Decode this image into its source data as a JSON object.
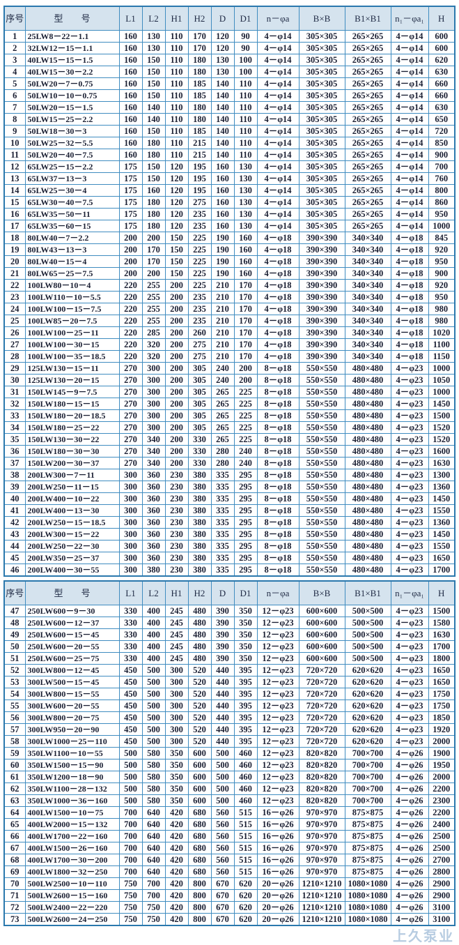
{
  "colors": {
    "border": "#2a78ad",
    "header_bg": "#d5e3ee",
    "text": "#1a1f33"
  },
  "header": [
    "序号",
    "型　　号",
    "L1",
    "L2",
    "H1",
    "H2",
    "D",
    "D1",
    "n－φa",
    "B×B",
    "B1×B1",
    "n₁－φa₁",
    "H"
  ],
  "sections": [
    {
      "rows": [
        [
          "1",
          "25LW8－22－1.1",
          "160",
          "130",
          "110",
          "170",
          "120",
          "90",
          "4－φ14",
          "305×305",
          "265×265",
          "4－φ14",
          "600"
        ],
        [
          "2",
          "32LW12－15－1.1",
          "160",
          "130",
          "110",
          "170",
          "120",
          "90",
          "4－φ14",
          "305×305",
          "265×265",
          "4－φ14",
          "600"
        ],
        [
          "3",
          "40LW15－15－1.5",
          "160",
          "150",
          "110",
          "180",
          "130",
          "100",
          "4－φ14",
          "305×305",
          "265×265",
          "4－φ14",
          "620"
        ],
        [
          "4",
          "40LW15－30－2.2",
          "160",
          "150",
          "110",
          "180",
          "130",
          "100",
          "4－φ14",
          "305×305",
          "265×265",
          "4－φ14",
          "630"
        ],
        [
          "5",
          "50LW20－7－0.75",
          "160",
          "150",
          "110",
          "185",
          "140",
          "110",
          "4－φ14",
          "305×305",
          "265×265",
          "4－φ14",
          "660"
        ],
        [
          "6",
          "50LW10－10－0.75",
          "160",
          "150",
          "110",
          "185",
          "140",
          "110",
          "4－φ14",
          "305×305",
          "265×265",
          "4－φ14",
          "660"
        ],
        [
          "7",
          "50LW20－15－1.5",
          "160",
          "140",
          "110",
          "180",
          "140",
          "110",
          "4－φ14",
          "305×305",
          "265×265",
          "4－φ14",
          "630"
        ],
        [
          "8",
          "50LW15－25－2.2",
          "160",
          "140",
          "110",
          "180",
          "140",
          "110",
          "4－φ14",
          "305×305",
          "265×265",
          "4－φ14",
          "650"
        ],
        [
          "9",
          "50LW18－30－3",
          "160",
          "150",
          "110",
          "185",
          "140",
          "110",
          "4－φ14",
          "305×305",
          "265×265",
          "4－φ14",
          "720"
        ],
        [
          "10",
          "50LW25－32－5.5",
          "160",
          "180",
          "110",
          "215",
          "140",
          "110",
          "4－φ14",
          "305×305",
          "265×265",
          "4－φ14",
          "850"
        ],
        [
          "11",
          "50LW20－40－7.5",
          "160",
          "180",
          "110",
          "215",
          "140",
          "110",
          "4－φ14",
          "305×305",
          "265×265",
          "4－φ14",
          "900"
        ],
        [
          "12",
          "65LW25－15－2.2",
          "175",
          "150",
          "120",
          "195",
          "160",
          "130",
          "4－φ14",
          "305×305",
          "265×265",
          "4－φ14",
          "700"
        ],
        [
          "13",
          "65LW37－13－3",
          "175",
          "150",
          "120",
          "195",
          "160",
          "130",
          "4－φ14",
          "305×305",
          "265×265",
          "4－φ14",
          "760"
        ],
        [
          "14",
          "65LW25－30－4",
          "175",
          "160",
          "120",
          "195",
          "160",
          "130",
          "4－φ14",
          "305×305",
          "265×265",
          "4－φ14",
          "800"
        ],
        [
          "15",
          "65LW30－40－7.5",
          "175",
          "180",
          "120",
          "275",
          "160",
          "130",
          "4－φ14",
          "305×305",
          "265×265",
          "4－φ14",
          "860"
        ],
        [
          "16",
          "65LW35－50－11",
          "175",
          "180",
          "120",
          "235",
          "160",
          "130",
          "4－φ14",
          "305×305",
          "265×265",
          "4－φ14",
          "950"
        ],
        [
          "17",
          "65LW35－60－15",
          "175",
          "180",
          "120",
          "235",
          "160",
          "130",
          "4－φ14",
          "305×305",
          "265×265",
          "4－φ14",
          "1000"
        ],
        [
          "18",
          "80LW40－7－2.2",
          "200",
          "200",
          "150",
          "225",
          "190",
          "160",
          "4－φ18",
          "390×390",
          "340×340",
          "4－φ18",
          "845"
        ],
        [
          "19",
          "80LW43－13－3",
          "200",
          "170",
          "150",
          "225",
          "190",
          "160",
          "4－φ18",
          "390×390",
          "340×340",
          "4－φ18",
          "920"
        ],
        [
          "20",
          "80LW40－15－4",
          "200",
          "170",
          "150",
          "225",
          "190",
          "160",
          "4－φ18",
          "390×390",
          "340×340",
          "4－φ18",
          "950"
        ],
        [
          "21",
          "80LW65－25－7.5",
          "200",
          "200",
          "150",
          "225",
          "190",
          "160",
          "4－φ18",
          "390×390",
          "340×340",
          "4－φ18",
          "900"
        ],
        [
          "22",
          "100LW80－10－4",
          "220",
          "255",
          "200",
          "225",
          "210",
          "170",
          "4－φ18",
          "390×390",
          "340×340",
          "4－φ18",
          "920"
        ],
        [
          "23",
          "100LW110－10－5.5",
          "220",
          "255",
          "200",
          "235",
          "210",
          "170",
          "4－φ18",
          "390×390",
          "340×340",
          "4－φ18",
          "950"
        ],
        [
          "24",
          "100LW100－15－7.5",
          "220",
          "255",
          "200",
          "235",
          "210",
          "170",
          "4－φ18",
          "390×390",
          "340×340",
          "4－φ18",
          "980"
        ],
        [
          "25",
          "100LW85－20－7.5",
          "220",
          "255",
          "200",
          "235",
          "210",
          "170",
          "4－φ18",
          "390×390",
          "340×340",
          "4－φ18",
          "980"
        ],
        [
          "26",
          "100LW100－25－11",
          "220",
          "285",
          "200",
          "260",
          "210",
          "170",
          "4－φ18",
          "390×390",
          "340×340",
          "4－φ18",
          "1020"
        ],
        [
          "27",
          "100LW100－30－15",
          "220",
          "320",
          "200",
          "275",
          "210",
          "170",
          "4－φ18",
          "390×390",
          "340×340",
          "4－φ18",
          "1100"
        ],
        [
          "28",
          "100LW100－35－18.5",
          "220",
          "320",
          "200",
          "275",
          "210",
          "170",
          "4－φ18",
          "390×390",
          "340×340",
          "4－φ18",
          "1150"
        ],
        [
          "29",
          "125LW130－15－11",
          "270",
          "300",
          "200",
          "305",
          "240",
          "200",
          "8－φ18",
          "550×550",
          "480×480",
          "4－φ23",
          "1000"
        ],
        [
          "30",
          "125LW130－20－15",
          "270",
          "300",
          "200",
          "305",
          "240",
          "200",
          "8－φ18",
          "550×550",
          "480×480",
          "4－φ23",
          "1050"
        ],
        [
          "31",
          "150LW145－9－7.5",
          "270",
          "300",
          "200",
          "305",
          "265",
          "225",
          "8－φ18",
          "550×550",
          "480×480",
          "4－φ23",
          "1000"
        ],
        [
          "32",
          "150LW180－15－15",
          "270",
          "300",
          "200",
          "305",
          "265",
          "225",
          "8－φ18",
          "550×550",
          "480×480",
          "4－φ23",
          "1450"
        ],
        [
          "33",
          "150LW180－20－18.5",
          "270",
          "300",
          "200",
          "305",
          "265",
          "225",
          "8－φ18",
          "550×550",
          "480×480",
          "4－φ23",
          "1500"
        ],
        [
          "34",
          "150LW180－25－22",
          "270",
          "300",
          "200",
          "305",
          "265",
          "225",
          "8－φ18",
          "550×550",
          "480×480",
          "4－φ23",
          "1520"
        ],
        [
          "35",
          "150LW130－30－22",
          "270",
          "340",
          "200",
          "330",
          "265",
          "225",
          "8－φ18",
          "550×550",
          "480×480",
          "4－φ23",
          "1520"
        ],
        [
          "36",
          "150LW180－30－30",
          "270",
          "340",
          "200",
          "330",
          "280",
          "240",
          "8－φ18",
          "550×550",
          "480×480",
          "4－φ23",
          "1600"
        ],
        [
          "37",
          "150LW200－30－37",
          "270",
          "340",
          "200",
          "330",
          "280",
          "240",
          "8－φ18",
          "550×550",
          "480×480",
          "4－φ23",
          "1630"
        ],
        [
          "38",
          "200LW300－7－11",
          "300",
          "360",
          "230",
          "380",
          "335",
          "295",
          "8－φ18",
          "550×550",
          "480×480",
          "4－φ23",
          "1300"
        ],
        [
          "39",
          "200LW250－11－15",
          "300",
          "360",
          "230",
          "380",
          "335",
          "295",
          "8－φ18",
          "550×550",
          "480×480",
          "4－φ23",
          "1360"
        ],
        [
          "40",
          "200LW400－10－22",
          "300",
          "360",
          "230",
          "380",
          "335",
          "295",
          "8－φ18",
          "550×550",
          "480×480",
          "4－φ23",
          "1450"
        ],
        [
          "41",
          "200LW400－13－30",
          "300",
          "360",
          "230",
          "380",
          "335",
          "295",
          "8－φ18",
          "550×550",
          "480×480",
          "4－φ23",
          "1550"
        ],
        [
          "42",
          "200LW250－15－18.5",
          "300",
          "360",
          "230",
          "380",
          "335",
          "295",
          "8－φ18",
          "550×550",
          "480×480",
          "4－φ23",
          "1360"
        ],
        [
          "43",
          "200LW300－15－22",
          "300",
          "360",
          "230",
          "380",
          "335",
          "295",
          "8－φ18",
          "550×550",
          "480×480",
          "4－φ23",
          "1450"
        ],
        [
          "44",
          "200LW250－22－30",
          "300",
          "360",
          "230",
          "380",
          "335",
          "295",
          "8－φ18",
          "550×550",
          "480×480",
          "4－φ23",
          "1550"
        ],
        [
          "45",
          "200LW350－25－37",
          "300",
          "360",
          "230",
          "380",
          "335",
          "295",
          "8－φ18",
          "550×550",
          "480×480",
          "4－φ23",
          "1650"
        ],
        [
          "46",
          "200LW400－30－55",
          "300",
          "380",
          "230",
          "380",
          "335",
          "295",
          "8－φ18",
          "550×550",
          "480×480",
          "4－φ23",
          "1700"
        ]
      ]
    },
    {
      "rows": [
        [
          "47",
          "250LW600－9－30",
          "330",
          "400",
          "245",
          "480",
          "390",
          "350",
          "12－φ23",
          "600×600",
          "500×500",
          "4－φ23",
          "1500"
        ],
        [
          "48",
          "250LW600－12－37",
          "330",
          "400",
          "245",
          "480",
          "390",
          "350",
          "12－φ23",
          "600×600",
          "500×500",
          "4－φ23",
          "1580"
        ],
        [
          "49",
          "250LW600－15－45",
          "330",
          "400",
          "245",
          "480",
          "390",
          "350",
          "12－φ23",
          "600×600",
          "500×500",
          "4－φ23",
          "1630"
        ],
        [
          "50",
          "250LW600－20－55",
          "330",
          "400",
          "245",
          "480",
          "390",
          "350",
          "12－φ23",
          "600×600",
          "500×500",
          "4－φ23",
          "1700"
        ],
        [
          "51",
          "250LW600－25－75",
          "330",
          "400",
          "245",
          "480",
          "390",
          "350",
          "12－φ23",
          "600×600",
          "500×500",
          "4－φ23",
          "1800"
        ],
        [
          "52",
          "300LW800－12－45",
          "450",
          "500",
          "300",
          "520",
          "440",
          "395",
          "12－φ23",
          "720×720",
          "620×620",
          "4－φ23",
          "1650"
        ],
        [
          "53",
          "300LW500－15－45",
          "450",
          "500",
          "300",
          "520",
          "440",
          "395",
          "12－φ23",
          "720×720",
          "620×620",
          "4－φ23",
          "1650"
        ],
        [
          "54",
          "300LW800－15－55",
          "450",
          "500",
          "300",
          "520",
          "440",
          "395",
          "12－φ23",
          "720×720",
          "620×620",
          "4－φ23",
          "1750"
        ],
        [
          "55",
          "300LW600－20－55",
          "450",
          "500",
          "300",
          "520",
          "440",
          "395",
          "12－φ23",
          "720×720",
          "620×620",
          "4－φ23",
          "1750"
        ],
        [
          "56",
          "300LW800－20－75",
          "450",
          "500",
          "300",
          "520",
          "440",
          "395",
          "12－φ23",
          "720×720",
          "620×620",
          "4－φ23",
          "1850"
        ],
        [
          "57",
          "300LW950－20－90",
          "450",
          "500",
          "300",
          "520",
          "440",
          "395",
          "12－φ23",
          "720×720",
          "620×620",
          "4－φ23",
          "1920"
        ],
        [
          "58",
          "300LW1000－25－110",
          "450",
          "500",
          "300",
          "520",
          "440",
          "395",
          "12－φ23",
          "720×720",
          "620×620",
          "4－φ23",
          "2000"
        ],
        [
          "59",
          "350LW1100－10－55",
          "500",
          "580",
          "350",
          "600",
          "500",
          "460",
          "12－φ23",
          "820×820",
          "700×700",
          "4－φ26",
          "1900"
        ],
        [
          "60",
          "350LW1500－15－90",
          "500",
          "580",
          "350",
          "600",
          "500",
          "460",
          "12－φ23",
          "820×820",
          "700×700",
          "4－φ26",
          "1950"
        ],
        [
          "61",
          "350LW1200－18－90",
          "500",
          "580",
          "350",
          "600",
          "500",
          "460",
          "12－φ23",
          "820×820",
          "700×700",
          "4－φ26",
          "2000"
        ],
        [
          "62",
          "350LW1100－28－132",
          "500",
          "580",
          "350",
          "600",
          "500",
          "460",
          "12－φ23",
          "820×820",
          "700×700",
          "4－φ26",
          "2200"
        ],
        [
          "63",
          "350LW1000－36－160",
          "500",
          "580",
          "350",
          "600",
          "500",
          "460",
          "12－φ23",
          "820×820",
          "700×700",
          "4－φ26",
          "2300"
        ],
        [
          "64",
          "400LW1500－10－75",
          "700",
          "640",
          "420",
          "680",
          "560",
          "515",
          "16－φ26",
          "970×970",
          "875×875",
          "4－φ26",
          "2200"
        ],
        [
          "65",
          "400LW2000－15－132",
          "700",
          "640",
          "420",
          "680",
          "560",
          "515",
          "16－φ26",
          "970×970",
          "875×875",
          "4－φ26",
          "2400"
        ],
        [
          "66",
          "400LW1700－22－160",
          "700",
          "640",
          "420",
          "680",
          "560",
          "515",
          "16－φ26",
          "970×970",
          "875×875",
          "4－φ26",
          "2500"
        ],
        [
          "67",
          "400LW1500－26－160",
          "700",
          "640",
          "420",
          "680",
          "560",
          "515",
          "16－φ26",
          "970×970",
          "875×875",
          "4－φ26",
          "2500"
        ],
        [
          "68",
          "400LW1700－30－200",
          "700",
          "640",
          "420",
          "680",
          "560",
          "515",
          "16－φ26",
          "970×970",
          "875×875",
          "4－φ26",
          "2700"
        ],
        [
          "69",
          "400LW1800－32－250",
          "700",
          "640",
          "420",
          "680",
          "560",
          "515",
          "16－φ26",
          "970×970",
          "875×875",
          "4－φ26",
          "2800"
        ],
        [
          "70",
          "500LW2500－10－110",
          "750",
          "700",
          "420",
          "800",
          "670",
          "620",
          "20－φ26",
          "1210×1210",
          "1080×1080",
          "4－φ26",
          "2900"
        ],
        [
          "71",
          "500LW2600－15－160",
          "750",
          "700",
          "420",
          "800",
          "670",
          "620",
          "20－φ26",
          "1210×1210",
          "1080×1080",
          "4－φ26",
          "2900"
        ],
        [
          "72",
          "500LW2400－22－220",
          "750",
          "750",
          "420",
          "800",
          "670",
          "620",
          "20－φ26",
          "1210×1210",
          "1080×1080",
          "4－φ26",
          "3100"
        ],
        [
          "73",
          "500LW2600－24－250",
          "750",
          "750",
          "420",
          "800",
          "670",
          "620",
          "20－φ26",
          "1210×1210",
          "1080×1080",
          "4－φ26",
          "3100"
        ]
      ]
    }
  ],
  "watermark": "上久泵业"
}
